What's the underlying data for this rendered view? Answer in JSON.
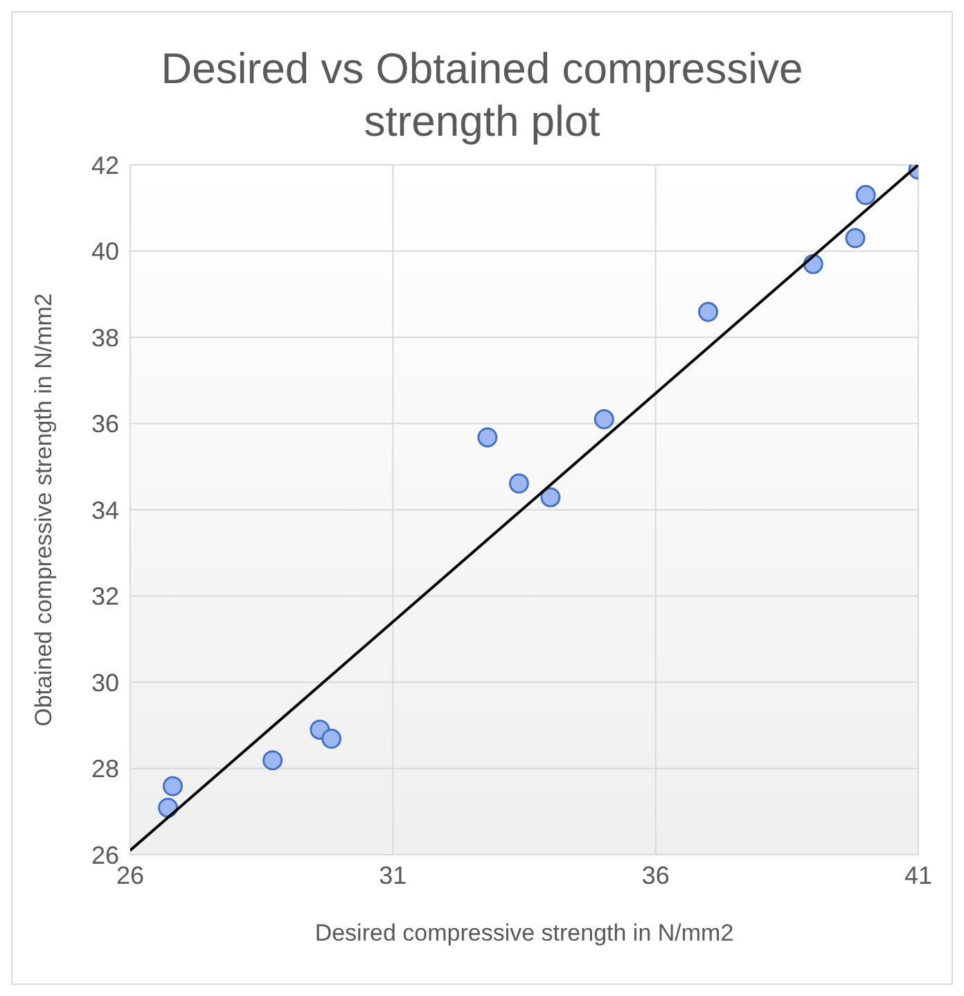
{
  "chart_data": {
    "type": "scatter",
    "title": "Desired vs Obtained compressive strength plot",
    "xlabel": "Desired compressive strength in N/mm2",
    "ylabel": "Obtained compressive strength in N/mm2",
    "series": [
      {
        "color": "#9db8f0",
        "x": [
          26.72,
          26.81,
          28.71,
          29.61,
          29.83,
          32.8,
          33.4,
          34.0,
          35.02,
          37.0,
          39.0,
          39.8,
          40.0,
          41.0
        ],
        "values": [
          27.09,
          27.59,
          28.19,
          28.9,
          28.69,
          35.68,
          34.61,
          34.29,
          36.1,
          38.59,
          39.7,
          40.3,
          41.3,
          41.89
        ]
      },
      {
        "type": "line",
        "color": "#000000",
        "marker": "none",
        "x": [
          26,
          41
        ],
        "values": [
          26.1,
          42
        ]
      }
    ],
    "xlim": [
      26,
      41
    ],
    "xticks": [
      26,
      31,
      36,
      41
    ],
    "ylim": [
      26,
      42
    ],
    "yticks": [
      26,
      28,
      30,
      32,
      34,
      36,
      38,
      40,
      42
    ],
    "grid": true,
    "marker": "circle",
    "legend": false
  }
}
